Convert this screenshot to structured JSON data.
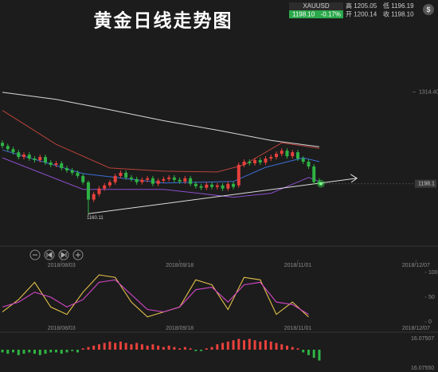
{
  "chart_data": {
    "type": "candlestick",
    "title": "黄金日线走势图",
    "quote": {
      "symbol": "XAUUSD",
      "price": "1198.10",
      "change": "-0.17%",
      "high": "高 1205.05",
      "low": "低 1196.19",
      "open": "开 1200.14",
      "close": "收 1198.10"
    },
    "xlim": [
      -0.45,
      80.8
    ],
    "xticks": [
      {
        "value": 11,
        "label": "2018/08/03"
      },
      {
        "value": 33,
        "label": "2018/09/18"
      },
      {
        "value": 55,
        "label": "2018/11/01"
      },
      {
        "value": 77,
        "label": "2018/12/07"
      }
    ],
    "ylim": [
      1120,
      1431
    ],
    "yticks": [
      {
        "value": 1314.4,
        "label": "1314.40"
      }
    ],
    "last_price": {
      "value": 1198.1,
      "label": "1198.1"
    },
    "low_annotation": {
      "x": 16,
      "value": 1160.11,
      "label": "1160.11"
    },
    "up_color": "#e8413c",
    "down_color": "#2fb344",
    "candles": [
      [
        1250,
        1253,
        1243,
        1246
      ],
      [
        1246,
        1249,
        1239,
        1242
      ],
      [
        1242,
        1245,
        1235,
        1238
      ],
      [
        1238,
        1241,
        1229,
        1232
      ],
      [
        1232,
        1238,
        1229,
        1235
      ],
      [
        1235,
        1238,
        1227,
        1230
      ],
      [
        1230,
        1233,
        1225,
        1228
      ],
      [
        1228,
        1235,
        1225,
        1232
      ],
      [
        1232,
        1235,
        1222,
        1225
      ],
      [
        1225,
        1228,
        1219,
        1222
      ],
      [
        1222,
        1227,
        1219,
        1224
      ],
      [
        1224,
        1227,
        1215,
        1218
      ],
      [
        1218,
        1221,
        1212,
        1215
      ],
      [
        1215,
        1218,
        1209,
        1212
      ],
      [
        1212,
        1215,
        1205,
        1208
      ],
      [
        1208,
        1211,
        1197,
        1200
      ],
      [
        1200,
        1202,
        1160.11,
        1178
      ],
      [
        1178,
        1188,
        1175,
        1185
      ],
      [
        1185,
        1195,
        1182,
        1192
      ],
      [
        1192,
        1199,
        1189,
        1196
      ],
      [
        1196,
        1203,
        1193,
        1200
      ],
      [
        1200,
        1211,
        1197,
        1208
      ],
      [
        1208,
        1215,
        1205,
        1212
      ],
      [
        1212,
        1215,
        1203,
        1206
      ],
      [
        1206,
        1209,
        1201,
        1204
      ],
      [
        1204,
        1207,
        1197,
        1200
      ],
      [
        1200,
        1206,
        1197,
        1203
      ],
      [
        1203,
        1208,
        1200,
        1205
      ],
      [
        1205,
        1208,
        1195,
        1198
      ],
      [
        1198,
        1205,
        1195,
        1202
      ],
      [
        1202,
        1207,
        1199,
        1204
      ],
      [
        1204,
        1209,
        1201,
        1206
      ],
      [
        1206,
        1209,
        1200,
        1203
      ],
      [
        1203,
        1206,
        1198,
        1201
      ],
      [
        1201,
        1208,
        1198,
        1205
      ],
      [
        1205,
        1208,
        1195,
        1198
      ],
      [
        1198,
        1201,
        1192,
        1195
      ],
      [
        1195,
        1198,
        1190,
        1193
      ],
      [
        1193,
        1200,
        1190,
        1197
      ],
      [
        1197,
        1200,
        1191,
        1194
      ],
      [
        1194,
        1199,
        1191,
        1196
      ],
      [
        1196,
        1199,
        1189,
        1192
      ],
      [
        1192,
        1201,
        1189,
        1198
      ],
      [
        1198,
        1201,
        1191,
        1194
      ],
      [
        1196,
        1225,
        1193,
        1222
      ],
      [
        1222,
        1229,
        1219,
        1226
      ],
      [
        1226,
        1229,
        1221,
        1224
      ],
      [
        1224,
        1231,
        1221,
        1228
      ],
      [
        1228,
        1231,
        1222,
        1225
      ],
      [
        1225,
        1233,
        1222,
        1230
      ],
      [
        1230,
        1235,
        1227,
        1232
      ],
      [
        1232,
        1239,
        1229,
        1236
      ],
      [
        1236,
        1243,
        1233,
        1240
      ],
      [
        1240,
        1243,
        1230,
        1233
      ],
      [
        1233,
        1241,
        1230,
        1238
      ],
      [
        1238,
        1241,
        1227,
        1230
      ],
      [
        1230,
        1233,
        1223,
        1226
      ],
      [
        1226,
        1229,
        1217,
        1220
      ],
      [
        1220,
        1223,
        1197.14,
        1200.14
      ],
      [
        1200.14,
        1205.05,
        1196.19,
        1198.1
      ]
    ],
    "overlays": [
      {
        "color": "#d8d8d8",
        "x": [
          0,
          10,
          20,
          30,
          40,
          50,
          59
        ],
        "values": [
          1314,
          1305,
          1292,
          1278,
          1266,
          1253,
          1245
        ]
      },
      {
        "color": "#b8423a",
        "x": [
          0,
          10,
          20,
          30,
          40,
          45,
          52,
          59
        ],
        "values": [
          1291,
          1248,
          1218,
          1214,
          1213,
          1222,
          1250,
          1243
        ]
      },
      {
        "color": "#3d6fd6",
        "x": [
          0,
          15,
          30,
          43,
          49,
          56,
          59
        ],
        "values": [
          1241,
          1211,
          1199,
          1201,
          1219,
          1231,
          1226
        ]
      },
      {
        "color": "#8a4fc9",
        "x": [
          0,
          15,
          30,
          43,
          50,
          57,
          59
        ],
        "values": [
          1231,
          1191,
          1191,
          1181,
          1186,
          1206,
          1201
        ]
      }
    ],
    "trendline": {
      "color": "#dddddd",
      "x": [
        16,
        66
      ],
      "values": [
        1160.11,
        1205
      ]
    },
    "stoch": {
      "type": "line",
      "ylim": [
        -8,
        108
      ],
      "yticks": [
        0,
        50,
        100
      ],
      "x": [
        0,
        3,
        6,
        9,
        12,
        15,
        18,
        21,
        24,
        27,
        30,
        33,
        36,
        39,
        42,
        45,
        48,
        51,
        54,
        57
      ],
      "series": [
        {
          "color": "#e2c04a",
          "values": [
            20,
            45,
            80,
            30,
            15,
            60,
            95,
            90,
            40,
            10,
            20,
            30,
            85,
            75,
            25,
            90,
            85,
            15,
            40,
            10
          ]
        },
        {
          "color": "#d447c9",
          "values": [
            30,
            40,
            60,
            50,
            30,
            45,
            80,
            85,
            55,
            25,
            20,
            30,
            65,
            70,
            40,
            75,
            80,
            40,
            35,
            15
          ]
        }
      ]
    },
    "macd": {
      "type": "bar",
      "ylim": [
        -10,
        10
      ],
      "axis_labels": [
        "16.07507",
        "16.07550"
      ],
      "up_color": "#e8413c",
      "down_color": "#2fb344",
      "values": [
        -2,
        -3,
        -2,
        -4,
        -3,
        -2,
        -3,
        -4,
        -3,
        -2,
        -2,
        -3,
        -2,
        -1,
        -2,
        1,
        2,
        3,
        4,
        5,
        6,
        5,
        6,
        5,
        4,
        5,
        4,
        3,
        4,
        3,
        2,
        3,
        2,
        1,
        2,
        1,
        -1,
        -1,
        1,
        2,
        4,
        5,
        6,
        7,
        8,
        7,
        8,
        7,
        6,
        7,
        6,
        5,
        4,
        3,
        2,
        1,
        -2,
        -4,
        -6,
        -8
      ]
    }
  }
}
